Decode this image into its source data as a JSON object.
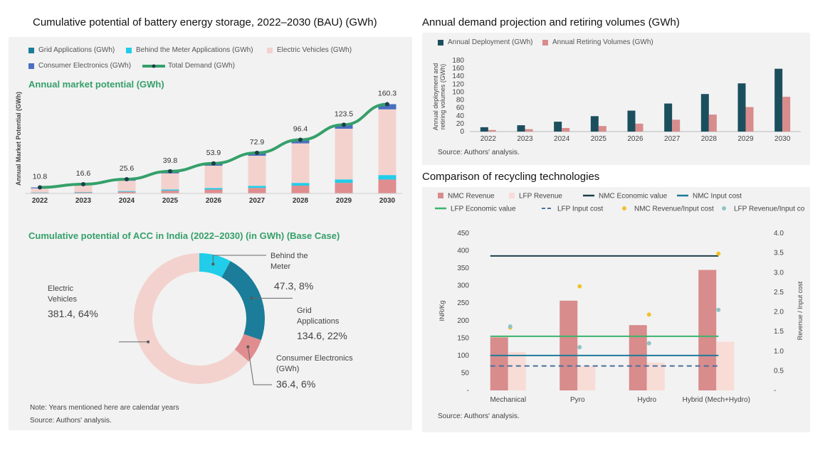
{
  "left": {
    "title": "Cumulative potential of battery energy storage, 2022–2030 (BAU) (GWh)",
    "legend": [
      {
        "label": "Grid Applications (GWh)",
        "color": "#1b7d99",
        "shape": "square"
      },
      {
        "label": "Behind the Meter Applications (GWh)",
        "color": "#21cde8",
        "shape": "square"
      },
      {
        "label": "Electric Vehicles (GWh)",
        "color": "#f3d2ce",
        "shape": "square"
      },
      {
        "label": "Consumer Electronics (GWh)",
        "color": "#4a6fc0",
        "shape": "square"
      },
      {
        "label": "Total Demand (GWh)",
        "color": "#35a06a",
        "shape": "line"
      }
    ],
    "subtitle": "Annual market potential (GWh)",
    "ylabel": "Annual Market Potential (GWh)",
    "donut_title": "Cumulative potential of ACC in India (2022–2030) (in GWh) (Base Case)",
    "note": "Note: Years mentioned here are calendar years",
    "source": "Source: Authors' analysis."
  },
  "right_top": {
    "title": "Annual demand projection and retiring volumes (GWh)",
    "legend": [
      {
        "label": "Annual Deployment (GWh)",
        "color": "#1c4f5e"
      },
      {
        "label": "Annual Retiring Volumes (GWh)",
        "color": "#d88c8c"
      }
    ],
    "ylabel": "Annual deployment and retiring volumes (GWh)",
    "source": "Source: Authors' analysis."
  },
  "right_bottom": {
    "title": "Comparison of recycling technologies",
    "legend": [
      {
        "label": "NMC Revenue",
        "color": "#d88c8c",
        "shape": "square"
      },
      {
        "label": "LFP Revenue",
        "color": "#f8dcd6",
        "shape": "square"
      },
      {
        "label": "NMC Economic value",
        "color": "#1c3f4a",
        "shape": "line"
      },
      {
        "label": "NMC Input cost",
        "color": "#1f7a9a",
        "shape": "line"
      },
      {
        "label": "LFP Economic value",
        "color": "#3bb56a",
        "shape": "line"
      },
      {
        "label": "LFP Input cost",
        "color": "#4a6f9e",
        "shape": "dash"
      },
      {
        "label": "NMC Revenue/Input cost",
        "color": "#f2c12e",
        "shape": "dot"
      },
      {
        "label": "LFP Revenue/Input cost",
        "color": "#8fc4c4",
        "shape": "dot"
      }
    ],
    "ylabel_left": "INR/Kg",
    "ylabel_right": "Revenue / Input cost",
    "source": "Source: Authors' analysis."
  },
  "chart_data": [
    {
      "type": "bar",
      "stacked": true,
      "title": "Annual market potential (GWh)",
      "ylabel": "Annual Market Potential (GWh)",
      "categories": [
        "2022",
        "2023",
        "2024",
        "2025",
        "2026",
        "2027",
        "2028",
        "2029",
        "2030"
      ],
      "ylim": [
        0,
        175
      ],
      "series": [
        {
          "name": "Grid Applications (GWh)",
          "color": "#e08d8f",
          "values": [
            1.2,
            1.8,
            3.0,
            5.0,
            7.0,
            10.0,
            14.0,
            19.0,
            25.0
          ]
        },
        {
          "name": "Behind the Meter Applications (GWh)",
          "color": "#21cde8",
          "values": [
            0.6,
            0.8,
            1.3,
            2.0,
            2.8,
            3.7,
            4.9,
            6.2,
            8.0
          ]
        },
        {
          "name": "Electric Vehicles (GWh)",
          "color": "#f3d2ce",
          "values": [
            7.4,
            12.0,
            18.5,
            29.0,
            40.0,
            54.0,
            71.0,
            91.0,
            118.0
          ]
        },
        {
          "name": "Consumer Electronics (GWh)",
          "color": "#4a6fc0",
          "values": [
            1.6,
            2.0,
            2.8,
            3.8,
            4.1,
            5.2,
            6.5,
            7.3,
            9.3
          ]
        }
      ],
      "line": {
        "name": "Total Demand (GWh)",
        "color": "#35a06a",
        "values": [
          10.8,
          16.6,
          25.6,
          39.8,
          53.9,
          72.9,
          96.4,
          123.5,
          160.3
        ]
      },
      "data_labels": [
        "10.8",
        "16.6",
        "25.6",
        "39.8",
        "53.9",
        "72.9",
        "96.4",
        "123.5",
        "160.3"
      ]
    },
    {
      "type": "pie",
      "donut": true,
      "title": "Cumulative potential of ACC in India (2022–2030) (in GWh) (Base Case)",
      "slices": [
        {
          "name": "Behind the Meter",
          "value": 47.3,
          "pct": "8%",
          "label": "47.3, 8%",
          "color": "#21cde8"
        },
        {
          "name": "Grid Applications",
          "value": 134.6,
          "pct": "22%",
          "label": "134.6, 22%",
          "color": "#1b7d99"
        },
        {
          "name": "Consumer Electronics (GWh)",
          "value": 36.4,
          "pct": "6%",
          "label": "36.4, 6%",
          "color": "#e08d8f"
        },
        {
          "name": "Electric Vehicles",
          "value": 381.4,
          "pct": "64%",
          "label": "381.4, 64%",
          "color": "#f3d2ce"
        }
      ]
    },
    {
      "type": "bar",
      "title": "Annual demand projection and retiring volumes (GWh)",
      "ylabel": "Annual deployment and retiring volumes (GWh)",
      "categories": [
        "2022",
        "2023",
        "2024",
        "2025",
        "2026",
        "2027",
        "2028",
        "2029",
        "2030"
      ],
      "ylim": [
        0,
        180
      ],
      "yticks": [
        0,
        20,
        40,
        60,
        80,
        100,
        120,
        140,
        160,
        180
      ],
      "series": [
        {
          "name": "Annual Deployment (GWh)",
          "color": "#1c4f5e",
          "values": [
            11,
            16,
            25,
            39,
            53,
            71,
            95,
            122,
            159
          ]
        },
        {
          "name": "Annual Retiring Volumes (GWh)",
          "color": "#d88c8c",
          "values": [
            4,
            6,
            9,
            14,
            20,
            30,
            43,
            62,
            88
          ]
        }
      ]
    },
    {
      "type": "bar",
      "title": "Comparison of recycling technologies",
      "ylabel": "INR/Kg",
      "y2label": "Revenue / Input cost",
      "categories": [
        "Mechanical",
        "Pyro",
        "Hydro",
        "Hybrid (Mech+Hydro)"
      ],
      "ylim": [
        0,
        450
      ],
      "y2lim": [
        0,
        4.0
      ],
      "yticks": [
        "-",
        "50",
        "100",
        "150",
        "200",
        "250",
        "300",
        "350",
        "400",
        "450"
      ],
      "y2ticks": [
        "-",
        "0.5",
        "1.0",
        "1.5",
        "2.0",
        "2.5",
        "3.0",
        "3.5",
        "4.0"
      ],
      "series": [
        {
          "name": "NMC Revenue",
          "color": "#d88c8c",
          "values": [
            152,
            257,
            187,
            345
          ]
        },
        {
          "name": "LFP Revenue",
          "color": "#f8dcd6",
          "values": [
            110,
            70,
            80,
            139
          ]
        }
      ],
      "hlines": [
        {
          "name": "NMC Economic value",
          "color": "#1c3f4a",
          "value": 385,
          "style": "solid"
        },
        {
          "name": "NMC Input cost",
          "color": "#1f7a9a",
          "value": 100,
          "style": "solid"
        },
        {
          "name": "LFP Economic value",
          "color": "#3bb56a",
          "value": 155,
          "style": "solid"
        },
        {
          "name": "LFP Input cost",
          "color": "#4a6f9e",
          "value": 70,
          "style": "dash"
        }
      ],
      "points": [
        {
          "name": "NMC Revenue/Input cost",
          "color": "#f2c12e",
          "values": [
            1.6,
            2.65,
            1.93,
            3.48
          ]
        },
        {
          "name": "LFP Revenue/Input cost",
          "color": "#8fc4c4",
          "values": [
            1.63,
            1.1,
            1.2,
            2.05
          ]
        }
      ]
    }
  ]
}
